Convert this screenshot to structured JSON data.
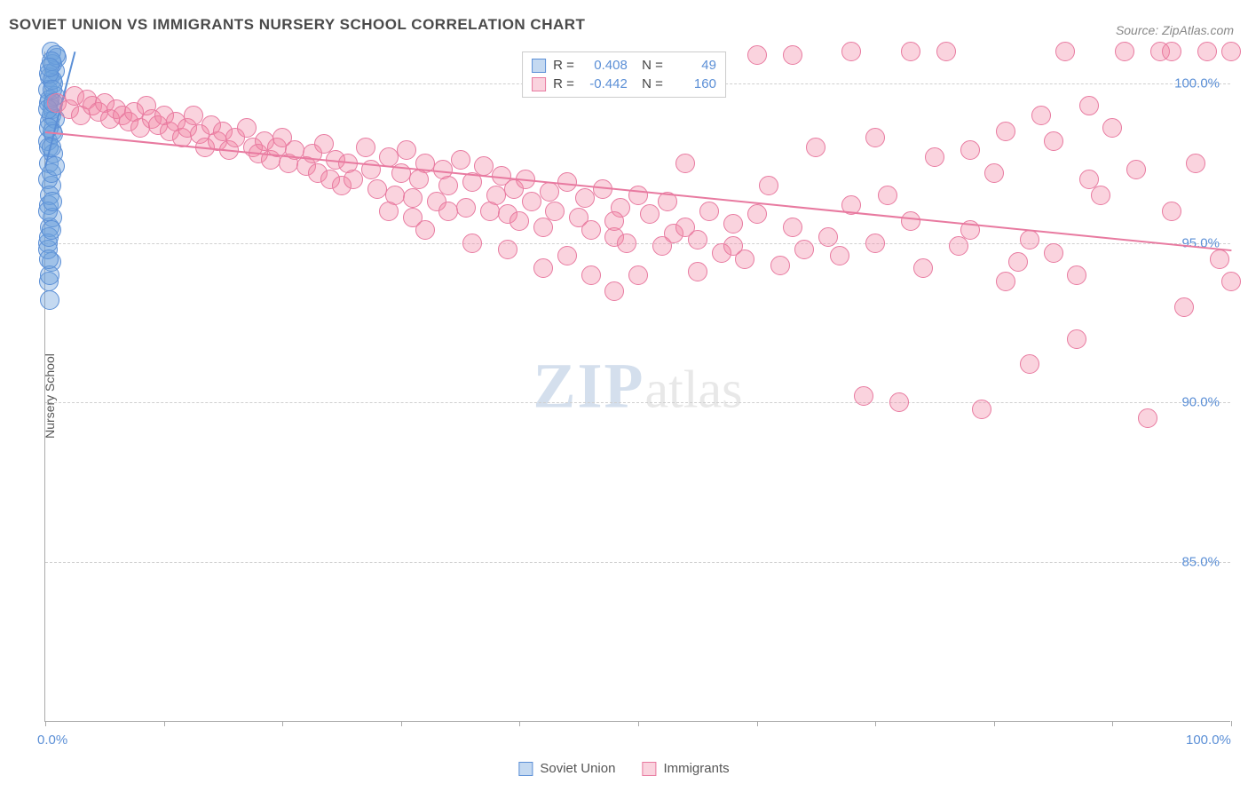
{
  "title": "SOVIET UNION VS IMMIGRANTS NURSERY SCHOOL CORRELATION CHART",
  "source": "Source: ZipAtlas.com",
  "ylabel": "Nursery School",
  "watermark_a": "ZIP",
  "watermark_b": "atlas",
  "chart": {
    "type": "scatter",
    "xlim": [
      0,
      100
    ],
    "ylim": [
      80,
      101
    ],
    "x_ticks": [
      0,
      10,
      20,
      30,
      40,
      50,
      60,
      70,
      80,
      90,
      100
    ],
    "x_tick_labels": {
      "0": "0.0%",
      "100": "100.0%"
    },
    "y_ticks": [
      85,
      90,
      95,
      100
    ],
    "y_tick_labels": [
      "85.0%",
      "90.0%",
      "95.0%",
      "100.0%"
    ],
    "grid_color": "#d0d0d0",
    "background_color": "#ffffff",
    "axis_color": "#aaaaaa",
    "point_radius": 11,
    "point_opacity": 0.55,
    "series": [
      {
        "name": "Soviet Union",
        "color_fill": "rgba(108,160,220,0.4)",
        "color_stroke": "#5b8fd6",
        "R": "0.408",
        "N": "49",
        "trend": {
          "x1": 0,
          "y1": 97.4,
          "x2": 2.5,
          "y2": 101,
          "color": "#5b8fd6"
        },
        "points": [
          [
            0.2,
            98.2
          ],
          [
            0.3,
            99.4
          ],
          [
            0.4,
            100.2
          ],
          [
            0.5,
            101
          ],
          [
            0.6,
            100.6
          ],
          [
            0.3,
            97.5
          ],
          [
            0.4,
            98.8
          ],
          [
            0.2,
            99.8
          ],
          [
            0.6,
            99.2
          ],
          [
            0.8,
            100.4
          ],
          [
            1.0,
            100.8
          ],
          [
            0.5,
            96.8
          ],
          [
            0.7,
            97.8
          ],
          [
            0.3,
            96.2
          ],
          [
            0.4,
            95.5
          ],
          [
            0.2,
            95.0
          ],
          [
            0.5,
            94.4
          ],
          [
            0.3,
            93.8
          ],
          [
            0.4,
            93.2
          ],
          [
            0.6,
            98.5
          ],
          [
            0.8,
            99.6
          ],
          [
            0.2,
            97.0
          ],
          [
            0.3,
            98.0
          ],
          [
            0.5,
            99.0
          ],
          [
            0.7,
            100.0
          ],
          [
            0.9,
            100.9
          ],
          [
            0.4,
            96.5
          ],
          [
            0.6,
            95.8
          ],
          [
            0.2,
            94.8
          ],
          [
            0.3,
            95.2
          ],
          [
            0.5,
            97.2
          ],
          [
            0.4,
            99.5
          ],
          [
            0.6,
            100.1
          ],
          [
            0.8,
            98.9
          ],
          [
            0.3,
            100.3
          ],
          [
            0.5,
            100.7
          ],
          [
            0.2,
            96.0
          ],
          [
            0.4,
            94.0
          ],
          [
            0.3,
            94.5
          ],
          [
            0.6,
            96.3
          ],
          [
            0.7,
            98.4
          ],
          [
            0.5,
            95.4
          ],
          [
            0.8,
            97.4
          ],
          [
            0.4,
            100.5
          ],
          [
            0.2,
            99.2
          ],
          [
            0.6,
            99.8
          ],
          [
            0.3,
            98.6
          ],
          [
            0.5,
            98.0
          ],
          [
            0.7,
            99.4
          ]
        ]
      },
      {
        "name": "Immigrants",
        "color_fill": "rgba(240,130,160,0.35)",
        "color_stroke": "#e87aa0",
        "R": "-0.442",
        "N": "160",
        "trend": {
          "x1": 0,
          "y1": 98.5,
          "x2": 100,
          "y2": 94.8,
          "color": "#e87aa0"
        },
        "points": [
          [
            1,
            99.4
          ],
          [
            2,
            99.2
          ],
          [
            2.5,
            99.6
          ],
          [
            3,
            99.0
          ],
          [
            3.5,
            99.5
          ],
          [
            4,
            99.3
          ],
          [
            4.5,
            99.1
          ],
          [
            5,
            99.4
          ],
          [
            5.5,
            98.9
          ],
          [
            6,
            99.2
          ],
          [
            6.5,
            99.0
          ],
          [
            7,
            98.8
          ],
          [
            7.5,
            99.1
          ],
          [
            8,
            98.6
          ],
          [
            8.5,
            99.3
          ],
          [
            9,
            98.9
          ],
          [
            9.5,
            98.7
          ],
          [
            10,
            99.0
          ],
          [
            10.5,
            98.5
          ],
          [
            11,
            98.8
          ],
          [
            11.5,
            98.3
          ],
          [
            12,
            98.6
          ],
          [
            12.5,
            99.0
          ],
          [
            13,
            98.4
          ],
          [
            13.5,
            98.0
          ],
          [
            14,
            98.7
          ],
          [
            14.5,
            98.2
          ],
          [
            15,
            98.5
          ],
          [
            15.5,
            97.9
          ],
          [
            16,
            98.3
          ],
          [
            17,
            98.6
          ],
          [
            17.5,
            98.0
          ],
          [
            18,
            97.8
          ],
          [
            18.5,
            98.2
          ],
          [
            19,
            97.6
          ],
          [
            19.5,
            98.0
          ],
          [
            20,
            98.3
          ],
          [
            20.5,
            97.5
          ],
          [
            21,
            97.9
          ],
          [
            22,
            97.4
          ],
          [
            22.5,
            97.8
          ],
          [
            23,
            97.2
          ],
          [
            23.5,
            98.1
          ],
          [
            24,
            97.0
          ],
          [
            24.5,
            97.6
          ],
          [
            25,
            96.8
          ],
          [
            25.5,
            97.5
          ],
          [
            26,
            97.0
          ],
          [
            27,
            98.0
          ],
          [
            27.5,
            97.3
          ],
          [
            28,
            96.7
          ],
          [
            29,
            97.7
          ],
          [
            29.5,
            96.5
          ],
          [
            30,
            97.2
          ],
          [
            30.5,
            97.9
          ],
          [
            31,
            96.4
          ],
          [
            31.5,
            97.0
          ],
          [
            32,
            97.5
          ],
          [
            33,
            96.3
          ],
          [
            33.5,
            97.3
          ],
          [
            34,
            96.8
          ],
          [
            35,
            97.6
          ],
          [
            35.5,
            96.1
          ],
          [
            36,
            96.9
          ],
          [
            37,
            97.4
          ],
          [
            37.5,
            96.0
          ],
          [
            38,
            96.5
          ],
          [
            38.5,
            97.1
          ],
          [
            39,
            95.9
          ],
          [
            39.5,
            96.7
          ],
          [
            40,
            95.7
          ],
          [
            40.5,
            97.0
          ],
          [
            41,
            96.3
          ],
          [
            42,
            95.5
          ],
          [
            42.5,
            96.6
          ],
          [
            43,
            96.0
          ],
          [
            44,
            96.9
          ],
          [
            45,
            95.8
          ],
          [
            45.5,
            96.4
          ],
          [
            46,
            95.4
          ],
          [
            47,
            96.7
          ],
          [
            48,
            95.2
          ],
          [
            48.5,
            96.1
          ],
          [
            49,
            95.0
          ],
          [
            50,
            96.5
          ],
          [
            51,
            95.9
          ],
          [
            52,
            94.9
          ],
          [
            52.5,
            96.3
          ],
          [
            53,
            95.3
          ],
          [
            54,
            97.5
          ],
          [
            55,
            95.1
          ],
          [
            56,
            96.0
          ],
          [
            57,
            94.7
          ],
          [
            58,
            95.6
          ],
          [
            59,
            94.5
          ],
          [
            60,
            95.9
          ],
          [
            61,
            96.8
          ],
          [
            62,
            94.3
          ],
          [
            63,
            95.5
          ],
          [
            64,
            94.8
          ],
          [
            65,
            98.0
          ],
          [
            66,
            95.2
          ],
          [
            67,
            94.6
          ],
          [
            68,
            96.2
          ],
          [
            69,
            90.2
          ],
          [
            70,
            95.0
          ],
          [
            71,
            96.5
          ],
          [
            72,
            90.0
          ],
          [
            73,
            95.7
          ],
          [
            74,
            94.2
          ],
          [
            75,
            97.7
          ],
          [
            76,
            101
          ],
          [
            77,
            94.9
          ],
          [
            78,
            95.4
          ],
          [
            79,
            89.8
          ],
          [
            80,
            97.2
          ],
          [
            81,
            98.5
          ],
          [
            82,
            94.4
          ],
          [
            83,
            95.1
          ],
          [
            84,
            99.0
          ],
          [
            85,
            98.2
          ],
          [
            86,
            101
          ],
          [
            87,
            94.0
          ],
          [
            88,
            97.0
          ],
          [
            89,
            96.5
          ],
          [
            90,
            98.6
          ],
          [
            91,
            101
          ],
          [
            92,
            97.3
          ],
          [
            93,
            89.5
          ],
          [
            94,
            101
          ],
          [
            95,
            96.0
          ],
          [
            96,
            93.0
          ],
          [
            97,
            97.5
          ],
          [
            98,
            101
          ],
          [
            99,
            94.5
          ],
          [
            100,
            93.8
          ],
          [
            60,
            100.9
          ],
          [
            63,
            100.9
          ],
          [
            68,
            101
          ],
          [
            70,
            98.3
          ],
          [
            73,
            101
          ],
          [
            54,
            95.5
          ],
          [
            55,
            94.1
          ],
          [
            58,
            94.9
          ],
          [
            50,
            94.0
          ],
          [
            48,
            93.5
          ],
          [
            81,
            93.8
          ],
          [
            83,
            91.2
          ],
          [
            85,
            94.7
          ],
          [
            87,
            92.0
          ],
          [
            100,
            101
          ],
          [
            95,
            101
          ],
          [
            88,
            99.3
          ],
          [
            78,
            97.9
          ],
          [
            36,
            95.0
          ],
          [
            42,
            94.2
          ],
          [
            44,
            94.6
          ],
          [
            48,
            95.7
          ],
          [
            34,
            96.0
          ],
          [
            32,
            95.4
          ],
          [
            29,
            96.0
          ],
          [
            31,
            95.8
          ],
          [
            46,
            94.0
          ],
          [
            39,
            94.8
          ]
        ]
      }
    ]
  },
  "legend": {
    "series1": "Soviet Union",
    "series2": "Immigrants"
  },
  "colors": {
    "blue_fill": "rgba(108,160,220,0.4)",
    "blue_stroke": "#5b8fd6",
    "pink_fill": "rgba(240,130,160,0.35)",
    "pink_stroke": "#e87aa0",
    "tick_text": "#5b8fd6"
  }
}
